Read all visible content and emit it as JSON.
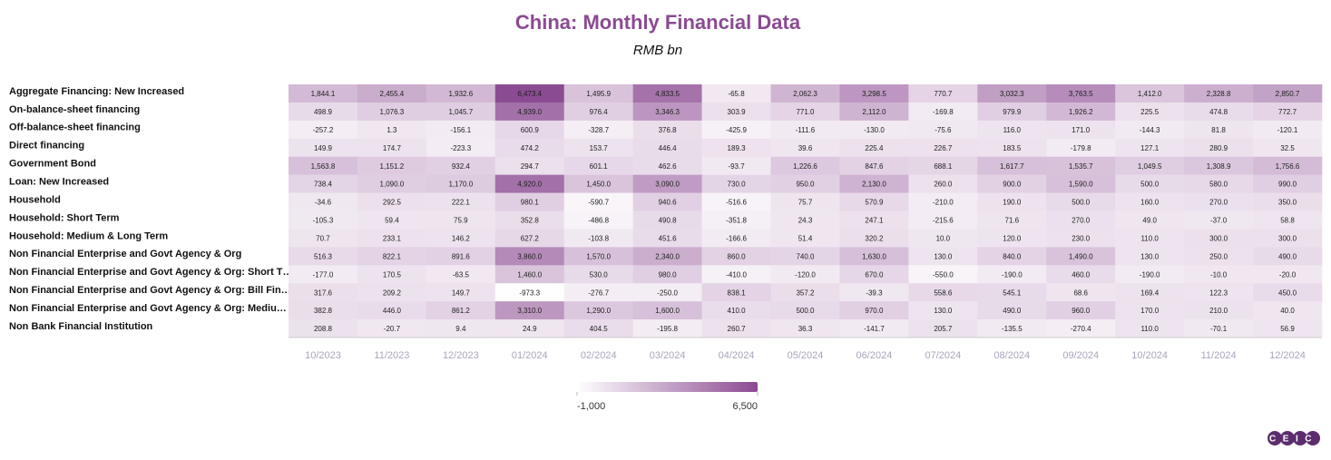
{
  "chart_data": {
    "type": "heatmap",
    "title": "China: Monthly Financial Data",
    "subtitle": "RMB bn",
    "logo": "CEIC",
    "x": [
      "10/2023",
      "11/2023",
      "12/2023",
      "01/2024",
      "02/2024",
      "03/2024",
      "04/2024",
      "05/2024",
      "06/2024",
      "07/2024",
      "08/2024",
      "09/2024",
      "10/2024",
      "11/2024",
      "12/2024"
    ],
    "y": [
      "Aggregate Financing: New Increased",
      "On-balance-sheet financing",
      "Off-balance-sheet financing",
      "Direct financing",
      "Government Bond",
      "Loan: New Increased",
      "Household",
      "Household: Short Term",
      "Household: Medium & Long Term",
      "Non Financial Enterprise and Govt Agency & Org",
      "Non Financial Enterprise and Govt Agency & Org: Short T…",
      "Non Financial Enterprise and Govt Agency & Org: Bill Fin…",
      "Non Financial Enterprise and Govt Agency & Org: Mediu…",
      "Non Bank Financial Institution"
    ],
    "values": [
      [
        1844.1,
        2455.4,
        1932.6,
        6473.4,
        1495.9,
        4833.5,
        -65.8,
        2062.3,
        3298.5,
        770.7,
        3032.3,
        3763.5,
        1412.0,
        2328.8,
        2850.7
      ],
      [
        498.9,
        1076.3,
        1045.7,
        4939.0,
        976.4,
        3346.3,
        303.9,
        771.0,
        2112.0,
        -169.8,
        979.9,
        1926.2,
        225.5,
        474.8,
        772.7
      ],
      [
        -257.2,
        1.3,
        -156.1,
        600.9,
        -328.7,
        376.8,
        -425.9,
        -111.6,
        -130.0,
        -75.6,
        116.0,
        171.0,
        -144.3,
        81.8,
        -120.1
      ],
      [
        149.9,
        174.7,
        -223.3,
        474.2,
        153.7,
        446.4,
        189.3,
        39.6,
        225.4,
        226.7,
        183.5,
        -179.8,
        127.1,
        280.9,
        32.5
      ],
      [
        1563.8,
        1151.2,
        932.4,
        294.7,
        601.1,
        462.6,
        -93.7,
        1226.6,
        847.6,
        688.1,
        1617.7,
        1535.7,
        1049.5,
        1308.9,
        1756.6
      ],
      [
        738.4,
        1090.0,
        1170.0,
        4920.0,
        1450.0,
        3090.0,
        730.0,
        950.0,
        2130.0,
        260.0,
        900.0,
        1590.0,
        500.0,
        580.0,
        990.0
      ],
      [
        -34.6,
        292.5,
        222.1,
        980.1,
        -590.7,
        940.6,
        -516.6,
        75.7,
        570.9,
        -210.0,
        190.0,
        500.0,
        160.0,
        270.0,
        350.0
      ],
      [
        -105.3,
        59.4,
        75.9,
        352.8,
        -486.8,
        490.8,
        -351.8,
        24.3,
        247.1,
        -215.6,
        71.6,
        270.0,
        49.0,
        -37.0,
        58.8
      ],
      [
        70.7,
        233.1,
        146.2,
        627.2,
        -103.8,
        451.6,
        -166.6,
        51.4,
        320.2,
        10.0,
        120.0,
        230.0,
        110.0,
        300.0,
        300.0
      ],
      [
        516.3,
        822.1,
        891.6,
        3860.0,
        1570.0,
        2340.0,
        860.0,
        740.0,
        1630.0,
        130.0,
        840.0,
        1490.0,
        130.0,
        250.0,
        490.0
      ],
      [
        -177.0,
        170.5,
        -63.5,
        1460.0,
        530.0,
        980.0,
        -410.0,
        -120.0,
        670.0,
        -550.0,
        -190.0,
        460.0,
        -190.0,
        -10.0,
        -20.0
      ],
      [
        317.6,
        209.2,
        149.7,
        -973.3,
        -276.7,
        -250.0,
        838.1,
        357.2,
        -39.3,
        558.6,
        545.1,
        68.6,
        169.4,
        122.3,
        450.0
      ],
      [
        382.8,
        446.0,
        861.2,
        3310.0,
        1290.0,
        1600.0,
        410.0,
        500.0,
        970.0,
        130.0,
        490.0,
        960.0,
        170.0,
        210.0,
        40.0
      ],
      [
        208.8,
        -20.7,
        9.4,
        24.9,
        404.5,
        -195.8,
        260.7,
        36.3,
        -141.7,
        205.7,
        -135.5,
        -270.4,
        110.0,
        -70.1,
        56.9
      ]
    ],
    "value_labels": [
      [
        "1,844.1",
        "2,455.4",
        "1,932.6",
        "6,473.4",
        "1,495.9",
        "4,833.5",
        "-65.8",
        "2,062.3",
        "3,298.5",
        "770.7",
        "3,032.3",
        "3,763.5",
        "1,412.0",
        "2,328.8",
        "2,850.7"
      ],
      [
        "498.9",
        "1,076.3",
        "1,045.7",
        "4,939.0",
        "976.4",
        "3,346.3",
        "303.9",
        "771.0",
        "2,112.0",
        "-169.8",
        "979.9",
        "1,926.2",
        "225.5",
        "474.8",
        "772.7"
      ],
      [
        "-257.2",
        "1.3",
        "-156.1",
        "600.9",
        "-328.7",
        "376.8",
        "-425.9",
        "-111.6",
        "-130.0",
        "-75.6",
        "116.0",
        "171.0",
        "-144.3",
        "81.8",
        "-120.1"
      ],
      [
        "149.9",
        "174.7",
        "-223.3",
        "474.2",
        "153.7",
        "446.4",
        "189.3",
        "39.6",
        "225.4",
        "226.7",
        "183.5",
        "-179.8",
        "127.1",
        "280.9",
        "32.5"
      ],
      [
        "1,563.8",
        "1,151.2",
        "932.4",
        "294.7",
        "601.1",
        "462.6",
        "-93.7",
        "1,226.6",
        "847.6",
        "688.1",
        "1,617.7",
        "1,535.7",
        "1,049.5",
        "1,308.9",
        "1,756.6"
      ],
      [
        "738.4",
        "1,090.0",
        "1,170.0",
        "4,920.0",
        "1,450.0",
        "3,090.0",
        "730.0",
        "950.0",
        "2,130.0",
        "260.0",
        "900.0",
        "1,590.0",
        "500.0",
        "580.0",
        "990.0"
      ],
      [
        "-34.6",
        "292.5",
        "222.1",
        "980.1",
        "-590.7",
        "940.6",
        "-516.6",
        "75.7",
        "570.9",
        "-210.0",
        "190.0",
        "500.0",
        "160.0",
        "270.0",
        "350.0"
      ],
      [
        "-105.3",
        "59.4",
        "75.9",
        "352.8",
        "-486.8",
        "490.8",
        "-351.8",
        "24.3",
        "247.1",
        "-215.6",
        "71.6",
        "270.0",
        "49.0",
        "-37.0",
        "58.8"
      ],
      [
        "70.7",
        "233.1",
        "146.2",
        "627.2",
        "-103.8",
        "451.6",
        "-166.6",
        "51.4",
        "320.2",
        "10.0",
        "120.0",
        "230.0",
        "110.0",
        "300.0",
        "300.0"
      ],
      [
        "516.3",
        "822.1",
        "891.6",
        "3,860.0",
        "1,570.0",
        "2,340.0",
        "860.0",
        "740.0",
        "1,630.0",
        "130.0",
        "840.0",
        "1,490.0",
        "130.0",
        "250.0",
        "490.0"
      ],
      [
        "-177.0",
        "170.5",
        "-63.5",
        "1,460.0",
        "530.0",
        "980.0",
        "-410.0",
        "-120.0",
        "670.0",
        "-550.0",
        "-190.0",
        "460.0",
        "-190.0",
        "-10.0",
        "-20.0"
      ],
      [
        "317.6",
        "209.2",
        "149.7",
        "-973.3",
        "-276.7",
        "-250.0",
        "838.1",
        "357.2",
        "-39.3",
        "558.6",
        "545.1",
        "68.6",
        "169.4",
        "122.3",
        "450.0"
      ],
      [
        "382.8",
        "446.0",
        "861.2",
        "3,310.0",
        "1,290.0",
        "1,600.0",
        "410.0",
        "500.0",
        "970.0",
        "130.0",
        "490.0",
        "960.0",
        "170.0",
        "210.0",
        "40.0"
      ],
      [
        "208.8",
        "-20.7",
        "9.4",
        "24.9",
        "404.5",
        "-195.8",
        "260.7",
        "36.3",
        "-141.7",
        "205.7",
        "-135.5",
        "-270.4",
        "110.0",
        "-70.1",
        "56.9"
      ]
    ],
    "color_scale": {
      "colors": [
        "#ffffff",
        "#8b4a92"
      ],
      "lim": [
        -1000,
        6500
      ],
      "ticks": [
        {
          "value": -1000,
          "label": "-1,000"
        },
        {
          "value": 6500,
          "label": "6,500"
        }
      ]
    }
  }
}
